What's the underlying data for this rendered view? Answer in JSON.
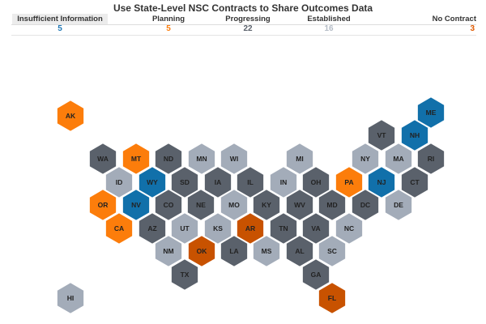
{
  "chart_data": {
    "type": "hex-tile-map",
    "title": "Use State-Level NSC Contracts to Share Outcomes Data",
    "categories": [
      {
        "key": "insufficient",
        "label": "Insufficient Information",
        "count": 5,
        "color": "#1170aa"
      },
      {
        "key": "planning",
        "label": "Planning",
        "count": 5,
        "color": "#fc7d0b"
      },
      {
        "key": "progressing",
        "label": "Progressing",
        "count": 22,
        "color": "#5a616b"
      },
      {
        "key": "established",
        "label": "Established",
        "count": 16,
        "color": "#a3acb9"
      },
      {
        "key": "none",
        "label": "No Contract",
        "count": 3,
        "color": "#c85200"
      }
    ],
    "states": {
      "AK": "planning",
      "ME": "insufficient",
      "VT": "progressing",
      "NH": "insufficient",
      "WA": "progressing",
      "MT": "planning",
      "ND": "progressing",
      "MN": "established",
      "WI": "established",
      "MI": "established",
      "NY": "established",
      "MA": "established",
      "RI": "progressing",
      "ID": "established",
      "WY": "insufficient",
      "SD": "progressing",
      "IA": "progressing",
      "IL": "progressing",
      "IN": "established",
      "OH": "progressing",
      "PA": "planning",
      "NJ": "insufficient",
      "CT": "progressing",
      "OR": "planning",
      "NV": "insufficient",
      "CO": "progressing",
      "NE": "progressing",
      "MO": "established",
      "KY": "progressing",
      "WV": "progressing",
      "MD": "progressing",
      "DC": "progressing",
      "DE": "established",
      "CA": "planning",
      "AZ": "progressing",
      "UT": "established",
      "KS": "established",
      "AR": "none",
      "TN": "progressing",
      "VA": "progressing",
      "NC": "established",
      "NM": "established",
      "OK": "none",
      "LA": "progressing",
      "MS": "established",
      "AL": "progressing",
      "SC": "established",
      "TX": "progressing",
      "GA": "progressing",
      "HI": "established",
      "FL": "none"
    }
  }
}
